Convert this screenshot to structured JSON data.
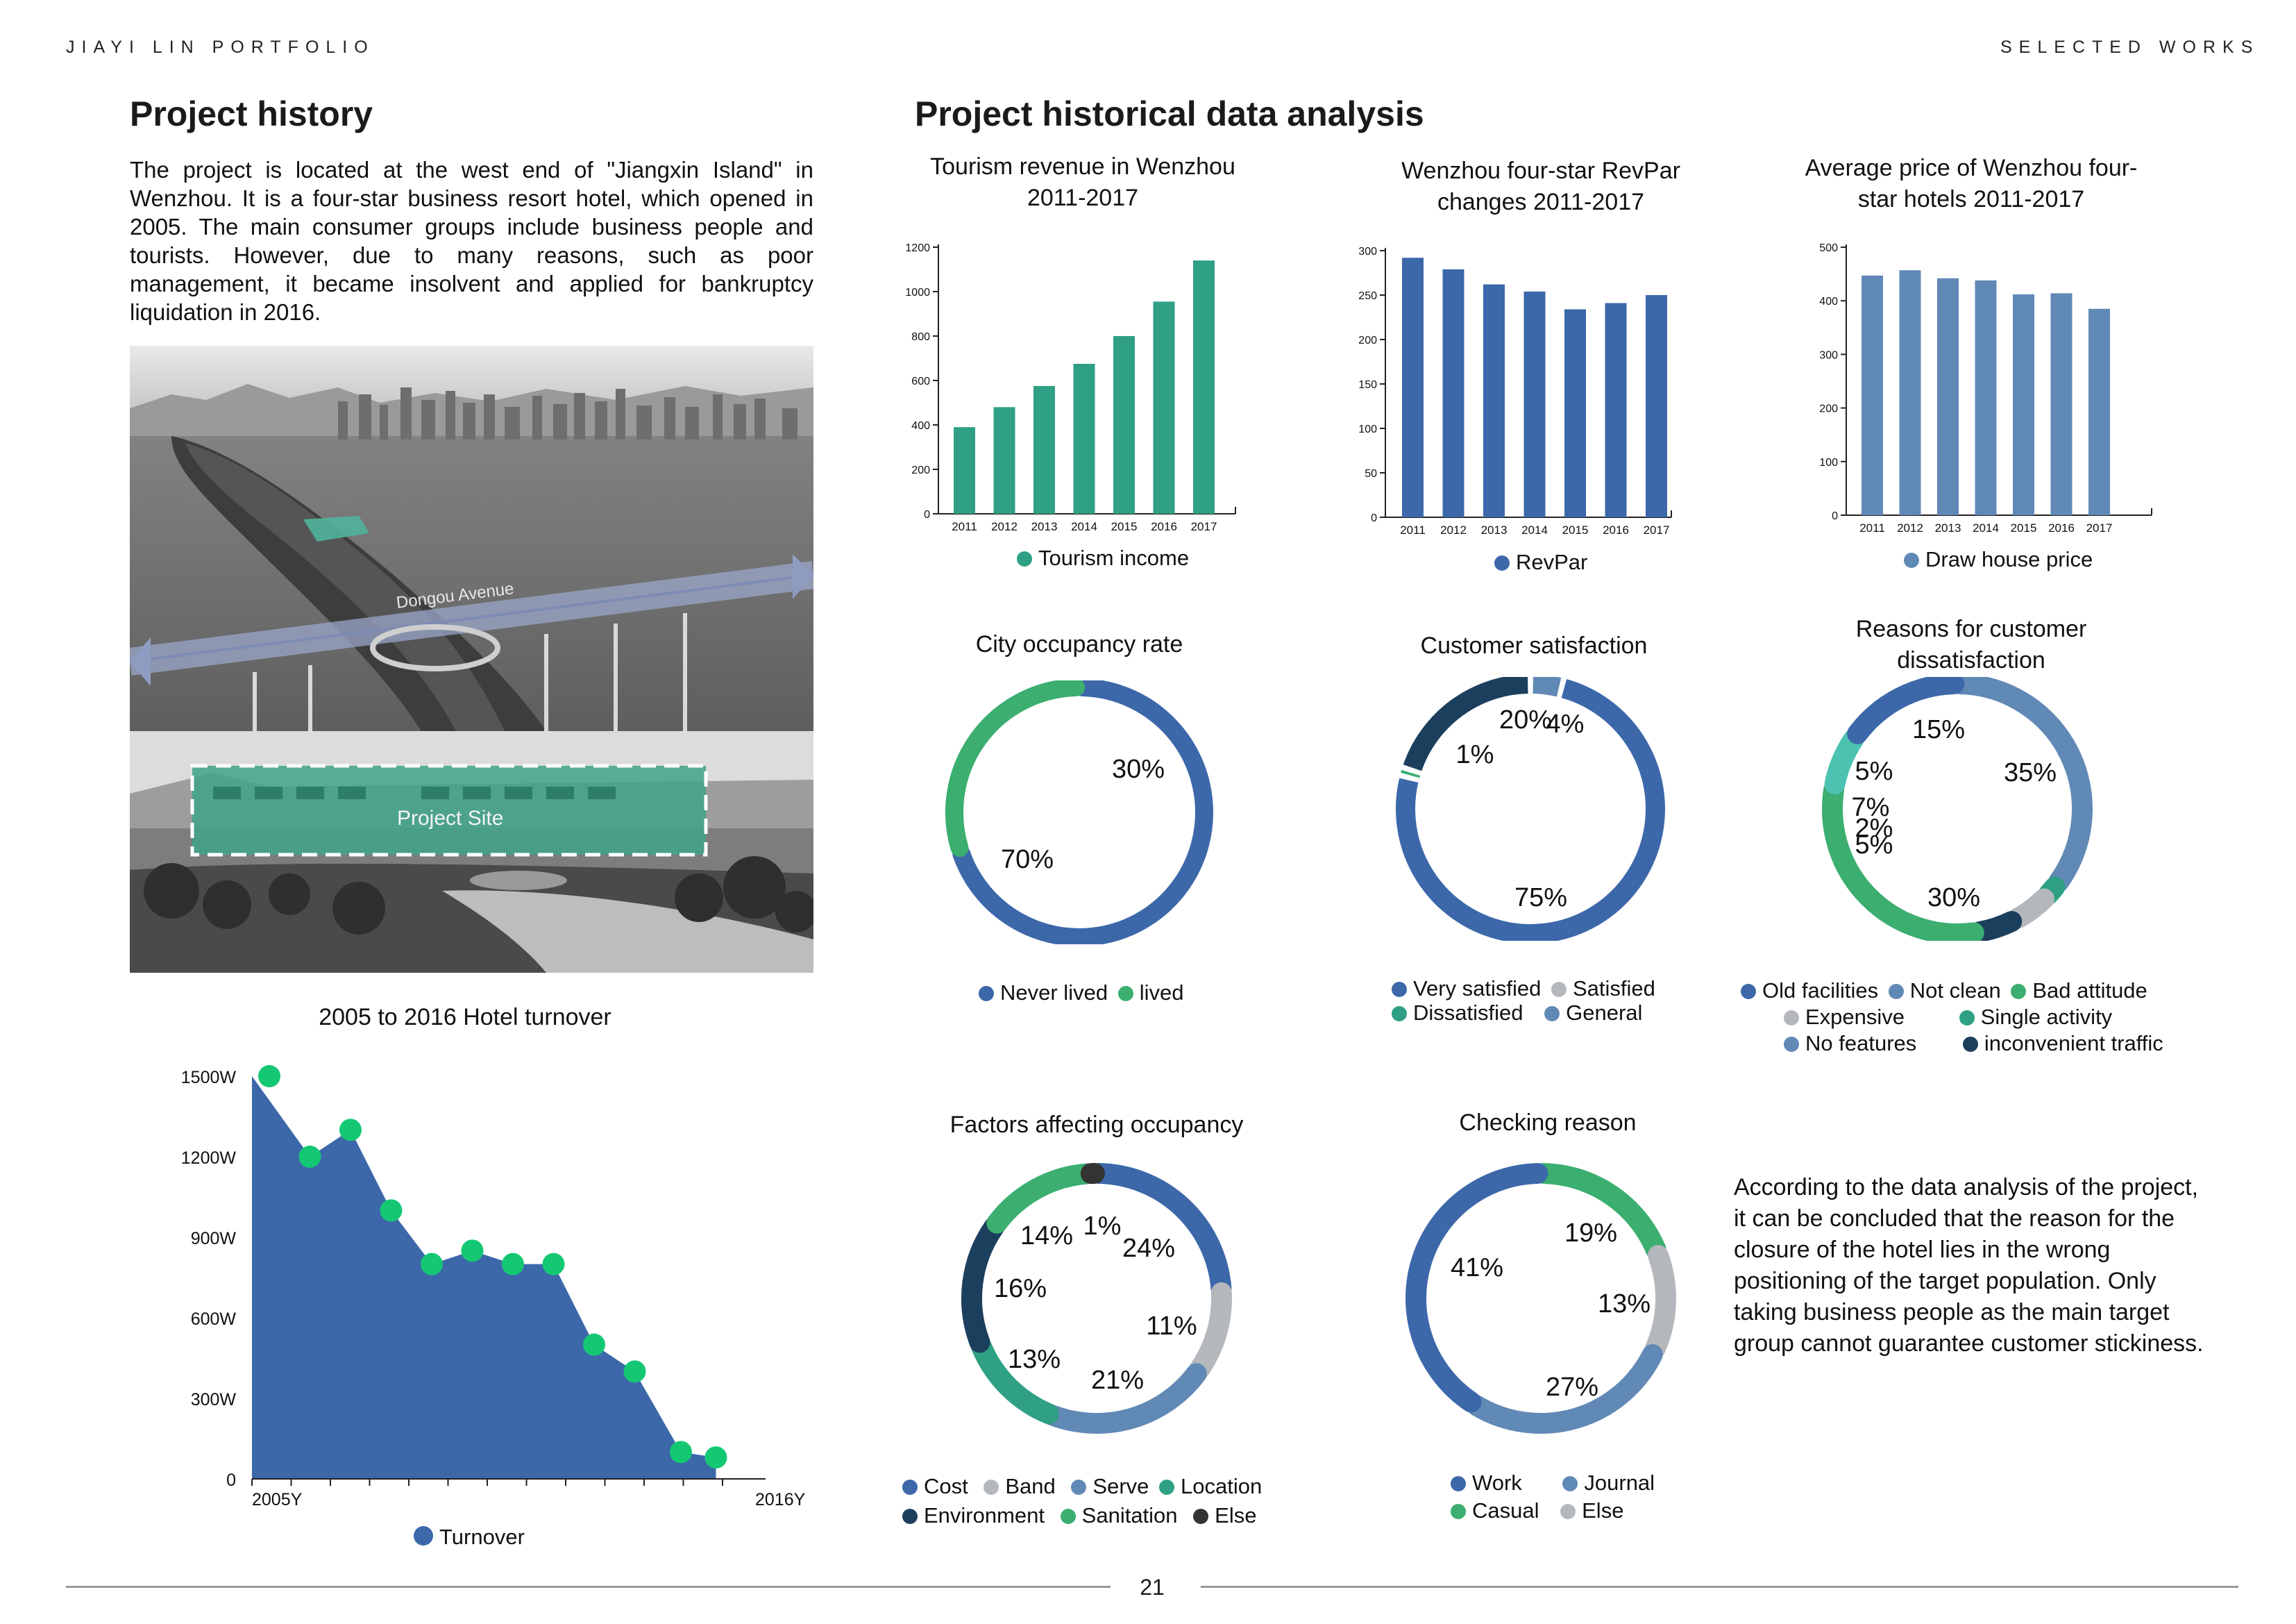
{
  "header": {
    "left": "JIAYI LIN PORTFOLIO",
    "right": "SELECTED WORKS"
  },
  "history": {
    "title": "Project history",
    "paragraph": "The project is located at the west end of \"Jiangxin Island\" in Wenzhou. It is a four-star business resort hotel, which opened in 2005. The main consumer groups include business people and tourists. However, due to many reasons, such as poor management, it became insolvent and applied for bankruptcy liquidation in 2016.",
    "photo_labels": {
      "avenue": "Dongou Avenue",
      "site": "Project Site"
    }
  },
  "analysis": {
    "title": "Project historical data analysis"
  },
  "conclusion": "According to the data analysis of the project, it can be concluded that the reason for the closure of the hotel lies in the wrong positioning of the target population. Only taking business people as the main target group cannot guarantee customer stickiness.",
  "footer": {
    "page": "21"
  },
  "colors": {
    "teal": "#2fa084",
    "blue": "#3c68aa",
    "steel": "#6189b6",
    "green": "#3bae70",
    "gray": "#b4b8bc",
    "navy": "#1d3f5e",
    "bright_green": "#14c873",
    "dark": "#333333"
  },
  "chart_data": [
    {
      "id": "turnover",
      "type": "area",
      "title": "2005 to 2016 Hotel turnover",
      "x_tick_labels": [
        "2005Y",
        "2016Y"
      ],
      "y_tick_labels": [
        "0",
        "300W",
        "600W",
        "900W",
        "1200W",
        "1500W"
      ],
      "ylim": [
        0,
        1500
      ],
      "values": [
        1500,
        1200,
        1300,
        1000,
        800,
        850,
        800,
        800,
        500,
        400,
        100,
        80
      ],
      "legend": [
        "Turnover"
      ]
    },
    {
      "id": "tourism",
      "type": "bar",
      "title": "Tourism revenue in Wenzhou 2011-2017",
      "categories": [
        "2011",
        "2012",
        "2013",
        "2014",
        "2015",
        "2016",
        "2017"
      ],
      "values": [
        390,
        480,
        575,
        675,
        800,
        955,
        1140
      ],
      "ylim": [
        0,
        1200
      ],
      "y_ticks": [
        "0",
        "200",
        "400",
        "600",
        "800",
        "1000",
        "1200"
      ],
      "legend": [
        "Tourism income"
      ]
    },
    {
      "id": "revpar",
      "type": "bar",
      "title": "Wenzhou four-star RevPar changes 2011-2017",
      "categories": [
        "2011",
        "2012",
        "2013",
        "2014",
        "2015",
        "2016",
        "2017"
      ],
      "values": [
        292,
        279,
        262,
        254,
        234,
        241,
        250
      ],
      "ylim": [
        0,
        300
      ],
      "y_ticks": [
        "0",
        "50",
        "100",
        "150",
        "200",
        "250",
        "300"
      ],
      "legend": [
        "RevPar"
      ]
    },
    {
      "id": "avgprice",
      "type": "bar",
      "title": "Average price of Wenzhou four-star hotels 2011-2017",
      "categories": [
        "2011",
        "2012",
        "2013",
        "2014",
        "2015",
        "2016",
        "2017"
      ],
      "values": [
        447,
        457,
        442,
        438,
        412,
        414,
        385
      ],
      "ylim": [
        0,
        500
      ],
      "y_ticks": [
        "0",
        "100",
        "200",
        "300",
        "400",
        "500"
      ],
      "legend": [
        "Draw house price"
      ]
    },
    {
      "id": "occupancy",
      "type": "pie",
      "title": "City occupancy rate",
      "labels": [
        "Never lived",
        "lived"
      ],
      "values": [
        70,
        30
      ],
      "value_labels": [
        "70%",
        "30%"
      ]
    },
    {
      "id": "satisfaction",
      "type": "pie",
      "title": "Customer satisfaction",
      "labels": [
        "Very satisfied",
        "Satisfied",
        "Dissatisfied",
        "General"
      ],
      "values": [
        75,
        20,
        1,
        4
      ],
      "value_labels": [
        "75%",
        "20%",
        "1%",
        "4%"
      ]
    },
    {
      "id": "dissatisfaction",
      "type": "pie",
      "title": "Reasons for customer dissatisfaction",
      "labels": [
        "Old facilities",
        "Not clean",
        "Bad attitude",
        "Expensive",
        "Single activity",
        "No features",
        "inconvenient traffic"
      ],
      "values": [
        15,
        35,
        30,
        5,
        2,
        7,
        5
      ],
      "value_labels": [
        "15%",
        "35%",
        "30%",
        "5%",
        "2%",
        "7%",
        "5%"
      ]
    },
    {
      "id": "factors",
      "type": "pie",
      "title": "Factors affecting occupancy",
      "labels": [
        "Cost",
        "Band",
        "Serve",
        "Location",
        "Environment",
        "Sanitation",
        "Else"
      ],
      "values": [
        24,
        11,
        21,
        13,
        16,
        14,
        1
      ],
      "value_labels": [
        "24%",
        "11%",
        "21%",
        "13%",
        "16%",
        "14%",
        "1%"
      ]
    },
    {
      "id": "checking",
      "type": "pie",
      "title": "Checking reason",
      "labels": [
        "Work",
        "Journal",
        "Casual",
        "Else"
      ],
      "values": [
        41,
        27,
        19,
        13
      ],
      "value_labels": [
        "41%",
        "27%",
        "19%",
        "13%"
      ]
    }
  ]
}
